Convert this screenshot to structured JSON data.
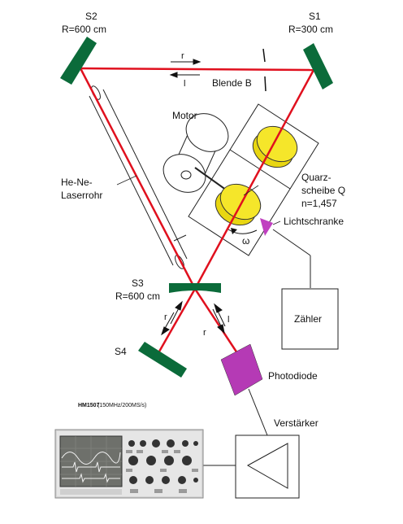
{
  "mirrors": {
    "s1": {
      "name": "S1",
      "radius": "R=300 cm"
    },
    "s2": {
      "name": "S2",
      "radius": "R=600 cm"
    },
    "s3": {
      "name": "S3",
      "radius": "R=600 cm"
    },
    "s4": {
      "name": "S4"
    }
  },
  "labels": {
    "blende": "Blende B",
    "motor": "Motor",
    "laser_line1": "He-Ne-",
    "laser_line2": "Laserrohr",
    "quarz_line1": "Quarz-",
    "quarz_line2": "scheibe Q",
    "quarz_line3": "n=1,457",
    "lichtschranke": "Lichtschranke",
    "omega": "ω",
    "zaehler": "Zähler",
    "photodiode": "Photodiode",
    "verstaerker": "Verstärker",
    "dir_r": "r",
    "dir_l": "l"
  },
  "oscilloscope": {
    "model": "HM1507",
    "spec": "(150MHz/200MS/s)"
  },
  "colors": {
    "beam": "#e0101e",
    "mirror": "#0b6b3a",
    "quartz": "#f1e21a",
    "photodiode": "#b53ab5",
    "lichtschranke": "#c040c0",
    "line": "#222222"
  }
}
